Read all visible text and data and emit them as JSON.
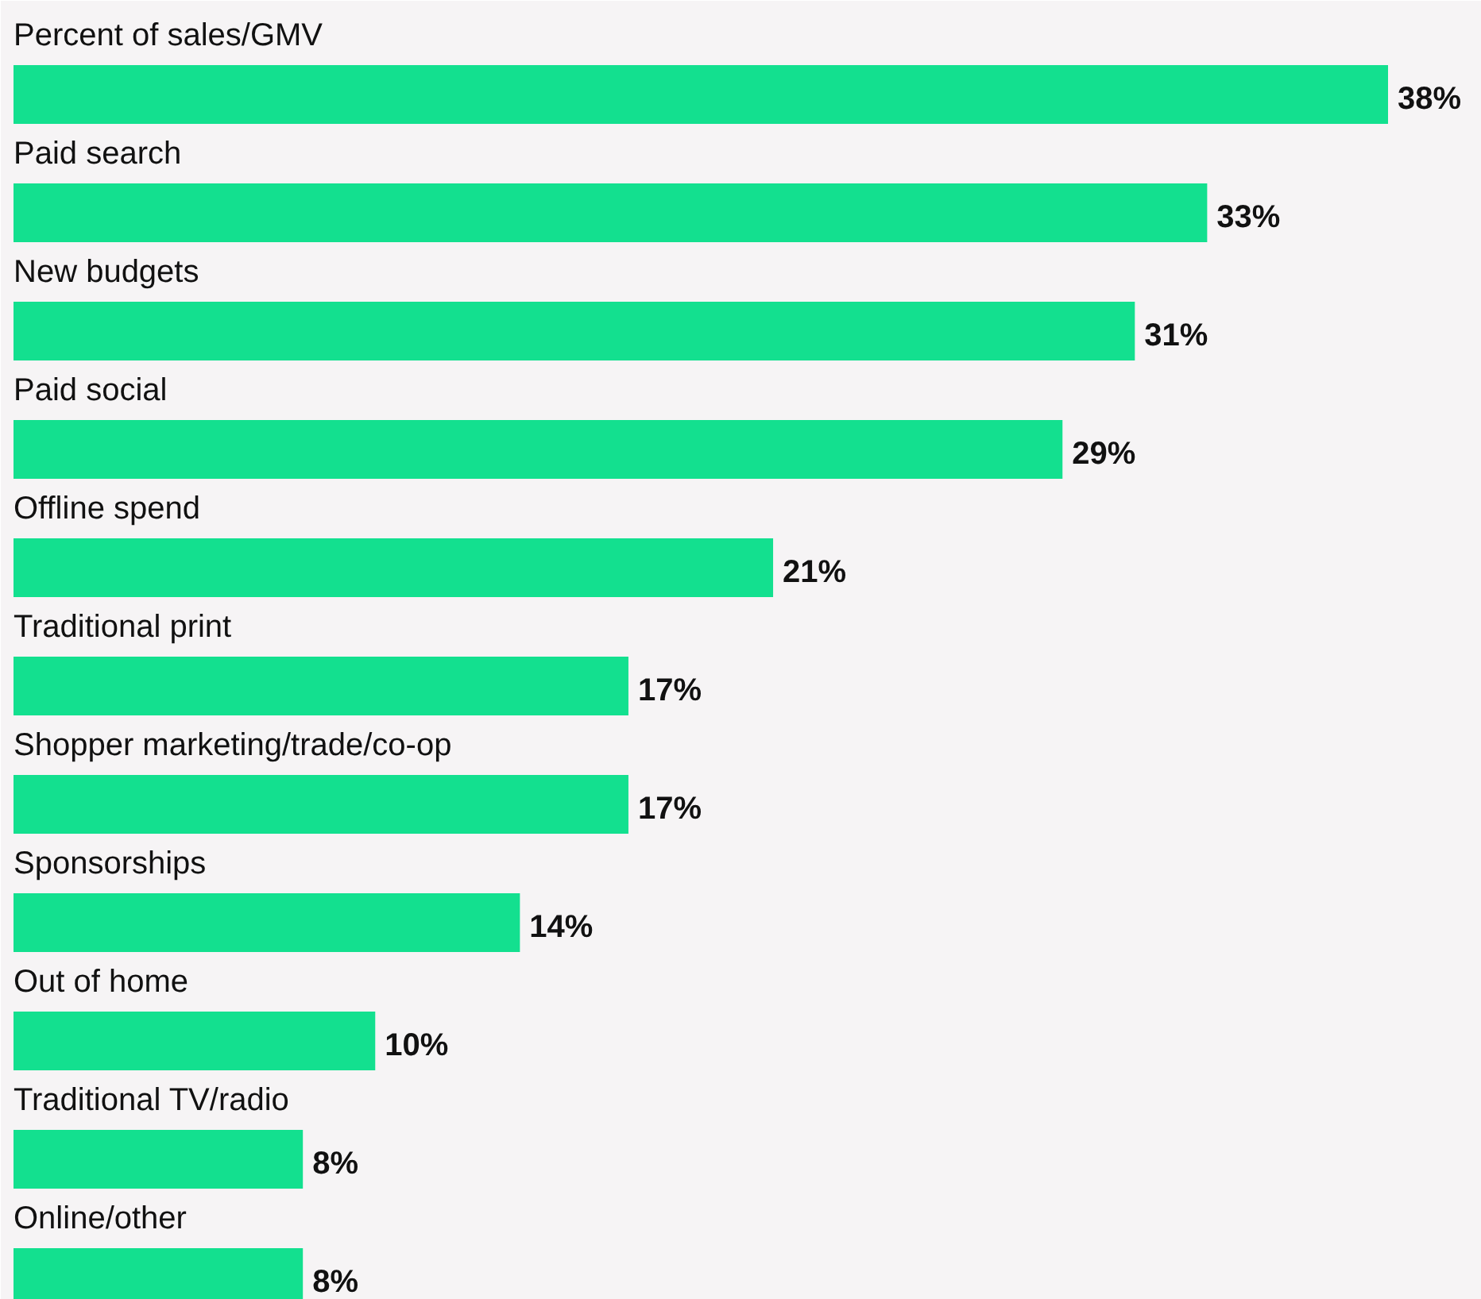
{
  "chart_data": {
    "type": "bar",
    "orientation": "horizontal",
    "categories": [
      "Percent of sales/GMV",
      "Paid search",
      "New budgets",
      "Paid social",
      "Offline spend",
      "Traditional print",
      "Shopper marketing/trade/co-op",
      "Sponsorships",
      "Out of home",
      "Traditional TV/radio",
      "Online/other"
    ],
    "values": [
      38,
      33,
      31,
      29,
      21,
      17,
      17,
      14,
      10,
      8,
      8
    ],
    "value_labels": [
      "38%",
      "33%",
      "31%",
      "29%",
      "21%",
      "17%",
      "17%",
      "14%",
      "10%",
      "8%",
      "8%"
    ],
    "color": "#13e08f"
  }
}
